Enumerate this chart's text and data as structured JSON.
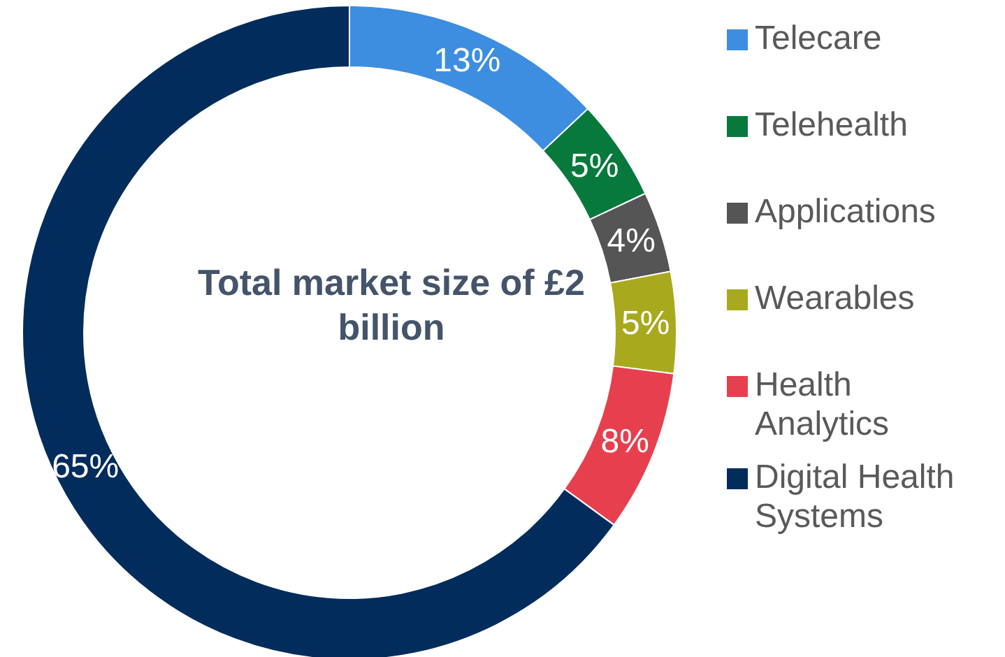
{
  "chart_data": {
    "type": "donut",
    "categories": [
      "Telecare",
      "Telehealth",
      "Applications",
      "Wearables",
      "Health Analytics",
      "Digital Health Systems"
    ],
    "values": [
      13,
      5,
      4,
      5,
      8,
      65
    ],
    "colors": [
      "#3d8ee0",
      "#08793d",
      "#555555",
      "#a9a91e",
      "#e6404f",
      "#012c5c"
    ],
    "value_labels": [
      "13%",
      "5%",
      "4%",
      "5%",
      "8%",
      "65%"
    ],
    "legend": "right",
    "annotations": [
      "Total market size of £2 billion"
    ]
  }
}
